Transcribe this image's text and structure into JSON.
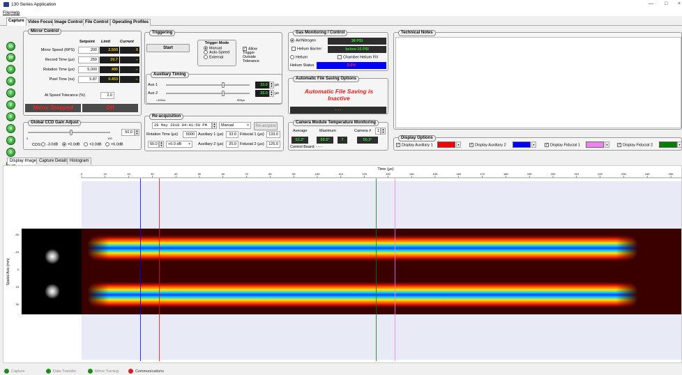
{
  "window": {
    "title": "130 Series Application"
  },
  "menu": [
    "File",
    "Help"
  ],
  "tabs": [
    "Capture",
    "Video Focus",
    "Image Control",
    "File Control",
    "Operating Profiles"
  ],
  "side_buttons": [
    "11",
    "10",
    "9",
    "8",
    "7",
    "6",
    "5",
    "4",
    "3",
    "2",
    "1"
  ],
  "mirror": {
    "legend": "Mirror Control",
    "col_setpoint": "Setpoint",
    "col_limit": "Limit",
    "col_current": "Current",
    "rows": [
      {
        "label": "Mirror Speed (RPS)",
        "setpoint": "200",
        "limit": "2,500",
        "current": "0"
      },
      {
        "label": "Record Time (µs)",
        "setpoint": "259",
        "limit": "20.7",
        "current": "--"
      },
      {
        "label": "Rotation Time (µs)",
        "setpoint": "5,000",
        "limit": "400",
        "current": "--"
      },
      {
        "label": "Pixel Time (ns)",
        "setpoint": "5.87",
        "limit": "0.453",
        "current": "--"
      }
    ],
    "tolerance_label": "At Speed Tolerance (%)",
    "tolerance_value": "2.0",
    "status": "Mirror Stopped",
    "state": "Off"
  },
  "gain": {
    "legend": "Global CCD Gain Adjust",
    "value": "50.0",
    "min": "0",
    "max": "100",
    "cds_label": "CDS:",
    "options": [
      "-3.0dB",
      "+0.0dB",
      "+3.0dB",
      "+6.0dB"
    ],
    "selected_index": 1
  },
  "triggering": {
    "legend": "Triggering",
    "start": "Start",
    "mode_legend": "Trigger Mode",
    "modes": [
      "Manual",
      "Auto-Speed",
      "External"
    ],
    "selected_index": 0,
    "allow_label": "Allow Trigger Outside Tolerance",
    "allow_checked": true
  },
  "aux_timing": {
    "legend": "Auxiliary Timing",
    "aux1_label": "Aux 1",
    "aux1_value": "33.0",
    "aux2_label": "Aux 2",
    "aux2_value": "25.0",
    "unit": "µs",
    "scale_min": "<100us",
    "scale_max": "500µs"
  },
  "reacq": {
    "legend": "Re-acquisition",
    "datetime": "29 May 2018 04:41:50 PM",
    "mode": "Manual",
    "button": "Re-acquire",
    "rotation_label": "Rotation Time (µs)",
    "rotation_value": "5000",
    "aux1_label": "Auxiliary 1 (µs)",
    "aux1_value": "33.0",
    "fid1_label": "Fiducial 1 (µs)",
    "fid1_value": "133.0",
    "gain_value": "50.0",
    "db_value": "+0.0 dB",
    "aux2_label": "Auxiliary 2 (µs)",
    "aux2_value": "25.0",
    "fid2_label": "Fiducial 2 (µs)",
    "fid2_value": "125.0"
  },
  "gas": {
    "legend": "Gas Monitoring / Control",
    "air_label": "Air/Nitrogen",
    "air_value": "38 PSI",
    "barrier_label": "Helium Barrier",
    "barrier_value": "below 15 PSI",
    "helium_label": "Helium",
    "chamber_label": "Chamber Helium Fill",
    "status_label": "Helium Status",
    "status_value": "0.0%"
  },
  "autosave": {
    "legend": "Automatic File Saving Options",
    "message": "Automatic File Saving is Inactive",
    "bar": "- - -"
  },
  "temps": {
    "legend": "Camera Module Temperature Monitoring",
    "avg_label": "Average",
    "max_label": "Maximum",
    "cam_label": "Camera #",
    "cam_value": "1",
    "avg_value": "52.2°",
    "max_value": "55.5°",
    "max_cam": "7",
    "cam_temp": "50.3°",
    "board_label": "Control Board: - - -"
  },
  "notes": {
    "legend": "Technical Notes"
  },
  "display": {
    "legend": "Display Options",
    "items": [
      {
        "label": "Display Auxiliary 1",
        "color": "#ff0000"
      },
      {
        "label": "Display Auxiliary 2",
        "color": "#0000ff"
      },
      {
        "label": "Display Fiducial 1",
        "color": "#ee82ee"
      },
      {
        "label": "Display Fiducial 2",
        "color": "#008000"
      }
    ]
  },
  "subtabs": [
    "Display Image",
    "Capture Details",
    "Histogram"
  ],
  "plot": {
    "xlabel": "Time (µs)",
    "ylabel": "Spatial Axis (mm)",
    "xticks": [
      "0",
      "10",
      "20",
      "30",
      "40",
      "50",
      "60",
      "70",
      "80",
      "90",
      "100",
      "110",
      "120",
      "130",
      "140",
      "150",
      "160",
      "170",
      "180",
      "190",
      "200",
      "210",
      "220",
      "230",
      "240",
      "250"
    ],
    "yticks": [
      "-30",
      "-15",
      "0",
      "15",
      "30"
    ],
    "markers_us": [
      {
        "name": "aux2-marker",
        "t": 25.0,
        "color": "#0000ff"
      },
      {
        "name": "aux1-marker",
        "t": 33.0,
        "color": "#ff0000"
      },
      {
        "name": "fid2-marker",
        "t": 125.0,
        "color": "#008000"
      },
      {
        "name": "fid1-marker",
        "t": 133.0,
        "color": "#ee82ee"
      }
    ]
  },
  "status": [
    {
      "label": "Capture",
      "color": "#1c8c1c"
    },
    {
      "label": "Data Transfer",
      "color": "#1c8c1c"
    },
    {
      "label": "Mirror Turning",
      "color": "#1c8c1c"
    },
    {
      "label": "Communications",
      "color": "#d02020"
    }
  ]
}
